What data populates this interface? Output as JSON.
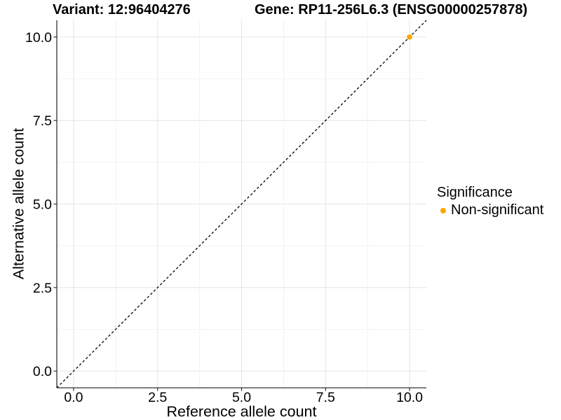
{
  "chart_data": {
    "type": "scatter",
    "title_left": "Variant: 12:96404276",
    "title_right": "Gene: RP11-256L6.3 (ENSG00000257878)",
    "xlabel": "Reference allele count",
    "ylabel": "Alternative allele count",
    "xlim": [
      -0.5,
      10.5
    ],
    "ylim": [
      -0.5,
      10.5
    ],
    "x_ticks": {
      "values": [
        0,
        2.5,
        5,
        7.5,
        10
      ],
      "labels": [
        "0.0",
        "2.5",
        "5.0",
        "7.5",
        "10.0"
      ]
    },
    "y_ticks": {
      "values": [
        0,
        2.5,
        5,
        7.5,
        10
      ],
      "labels": [
        "0.0",
        "2.5",
        "5.0",
        "7.5",
        "10.0"
      ]
    },
    "x_minor": [
      1.25,
      3.75,
      6.25,
      8.75
    ],
    "y_minor": [
      1.25,
      3.75,
      6.25,
      8.75
    ],
    "grid": true,
    "identity_line": {
      "slope": 1,
      "intercept": 0,
      "style": "dashed",
      "color": "#000000"
    },
    "series": [
      {
        "name": "Non-significant",
        "color": "#FFA500",
        "points": [
          {
            "x": 10,
            "y": 10
          }
        ]
      }
    ],
    "legend": {
      "title": "Significance",
      "position": "right",
      "items": [
        {
          "label": "Non-significant",
          "color": "#FFA500"
        }
      ]
    }
  },
  "colors": {
    "background": "#FFFFFF",
    "axis_line": "#333333",
    "grid_major": "#E6E6E6",
    "grid_minor": "#F2F2F2",
    "text": "#000000",
    "point": "#FFA500"
  }
}
